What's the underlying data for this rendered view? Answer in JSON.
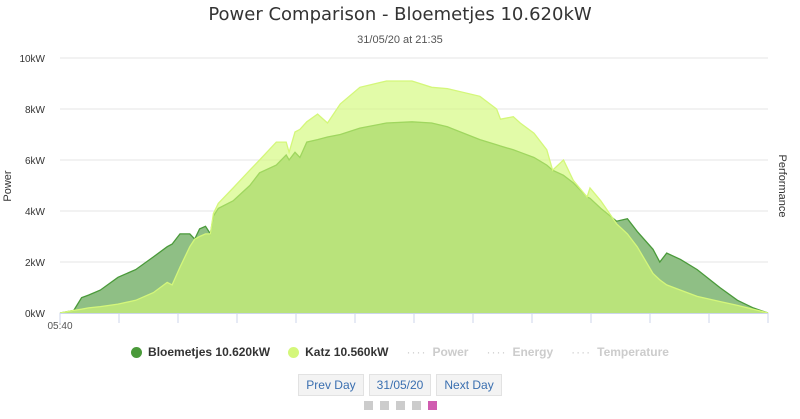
{
  "header": {
    "title": "Power Comparison - Bloemetjes 10.620kW",
    "subtitle": "31/05/20 at 21:35"
  },
  "chart_data": {
    "type": "area",
    "title": "Power Comparison - Bloemetjes 10.620kW",
    "subtitle": "31/05/20 at 21:35",
    "ylabel": "Power",
    "ylabel_right": "Performance",
    "ylim": [
      0,
      10
    ],
    "yticks": [
      "0kW",
      "2kW",
      "4kW",
      "6kW",
      "8kW",
      "10kW"
    ],
    "xlim": [
      "05:40",
      "17:40"
    ],
    "xtick_labels": [
      "05:40"
    ],
    "xtick_interval_minutes": 60,
    "grid": true,
    "legend_placement": "bottom",
    "x": [
      "05:40",
      "05:54",
      "06:02",
      "06:09",
      "06:21",
      "06:39",
      "06:57",
      "07:15",
      "07:29",
      "07:34",
      "07:42",
      "07:52",
      "07:57",
      "08:02",
      "08:08",
      "08:13",
      "08:16",
      "08:21",
      "08:36",
      "08:53",
      "09:03",
      "09:20",
      "09:30",
      "09:33",
      "09:39",
      "09:44",
      "09:51",
      "10:02",
      "10:12",
      "10:25",
      "10:45",
      "11:12",
      "11:38",
      "11:58",
      "12:14",
      "12:47",
      "13:04",
      "13:08",
      "13:21",
      "13:28",
      "13:42",
      "13:55",
      "14:01",
      "14:12",
      "14:22",
      "14:36",
      "14:39",
      "14:50",
      "15:06",
      "15:17",
      "15:27",
      "15:43",
      "15:50",
      "15:57",
      "16:11",
      "16:28",
      "16:51",
      "17:09",
      "17:25",
      "17:40"
    ],
    "series": [
      {
        "name": "Bloemetjes 10.620kW",
        "color": "#4a9a3a",
        "fill": "#8fbf85",
        "values": [
          0,
          0.1,
          0.6,
          0.7,
          0.9,
          1.4,
          1.7,
          2.2,
          2.6,
          2.7,
          3.1,
          3.1,
          2.9,
          3.3,
          3.4,
          3.1,
          3.8,
          4.1,
          4.4,
          5.0,
          5.5,
          5.8,
          6.2,
          6.0,
          6.3,
          6.1,
          6.7,
          6.8,
          6.9,
          7.0,
          7.25,
          7.45,
          7.5,
          7.45,
          7.3,
          6.8,
          6.6,
          6.55,
          6.4,
          6.3,
          6.1,
          5.8,
          5.6,
          5.4,
          5.1,
          4.55,
          4.5,
          4.1,
          3.6,
          3.7,
          3.2,
          2.5,
          2.0,
          2.35,
          2.1,
          1.7,
          1.0,
          0.5,
          0.2,
          0
        ]
      },
      {
        "name": "Katz 10.560kW",
        "color": "#d4f77a",
        "fill": "#d1f975",
        "values": [
          0,
          0.1,
          0.15,
          0.2,
          0.25,
          0.35,
          0.5,
          0.8,
          1.2,
          1.1,
          1.8,
          2.6,
          2.9,
          3.0,
          3.1,
          3.1,
          3.9,
          4.3,
          4.9,
          5.6,
          6.0,
          6.7,
          6.7,
          6.3,
          7.1,
          7.2,
          7.5,
          7.8,
          7.45,
          8.2,
          8.85,
          9.1,
          9.1,
          8.85,
          8.8,
          8.5,
          8.0,
          7.6,
          7.7,
          7.45,
          7.05,
          6.4,
          5.6,
          6.0,
          5.2,
          4.55,
          4.9,
          4.4,
          3.5,
          3.1,
          2.6,
          1.55,
          1.3,
          1.1,
          0.9,
          0.65,
          0.45,
          0.3,
          0.15,
          0
        ]
      }
    ],
    "hidden_series": [
      "Power",
      "Energy",
      "Temperature"
    ]
  },
  "legend": {
    "items": [
      "Bloemetjes 10.620kW",
      "Katz 10.560kW"
    ],
    "hidden": [
      "Power",
      "Energy",
      "Temperature"
    ],
    "hidden_marker": "····"
  },
  "nav": {
    "prev": "Prev Day",
    "date": "31/05/20",
    "next": "Next Day"
  },
  "pager": {
    "count": 5,
    "active": 5,
    "active_color": "#d05cb0",
    "inactive_color": "#cccccc"
  }
}
